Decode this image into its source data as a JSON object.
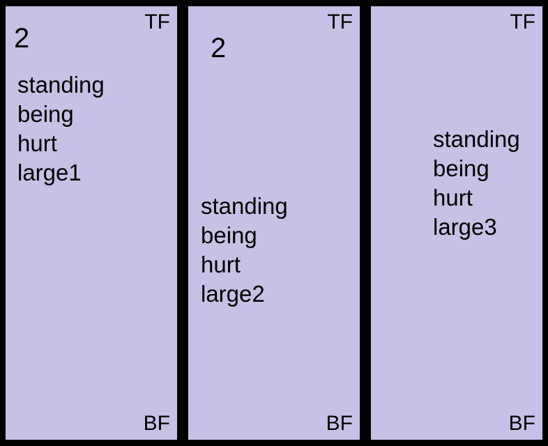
{
  "panels": [
    {
      "top_label": "TF",
      "bottom_label": "BF",
      "number": "2",
      "words": [
        "standing",
        "being",
        "hurt",
        "large1"
      ]
    },
    {
      "top_label": "TF",
      "bottom_label": "BF",
      "number": "2",
      "words": [
        "standing",
        "being",
        "hurt",
        "large2"
      ]
    },
    {
      "top_label": "TF",
      "bottom_label": "BF",
      "words": [
        "standing",
        "being",
        "hurt",
        "large3"
      ]
    }
  ],
  "colors": {
    "background": "#000000",
    "panel": "#c8c0e6",
    "text": "#000000"
  }
}
